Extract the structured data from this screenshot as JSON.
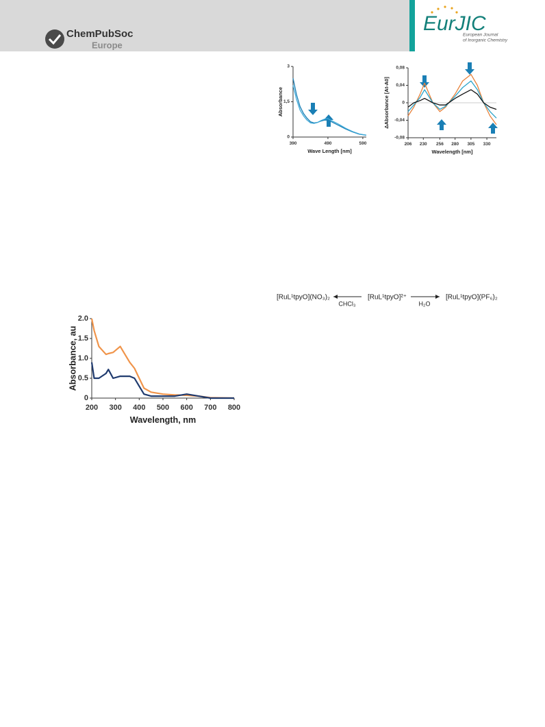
{
  "header": {
    "publisher": "ChemPubSoc",
    "publisher_sub": "Europe",
    "journal": "EurJIC",
    "journal_sub": [
      "European Journal",
      "of Inorganic Chemistry"
    ]
  },
  "figures": [
    {
      "ylabel": "Absorbance",
      "xlabel": "Wave Length [nm]",
      "xlim": [
        390,
        600
      ],
      "ylim": [
        0,
        3
      ],
      "xticks": [
        390,
        490,
        590
      ],
      "yticks": [
        0,
        {
          "value": 1.5,
          "label": "1,5"
        },
        3
      ],
      "x": [
        390,
        400,
        410,
        420,
        430,
        440,
        450,
        460,
        470,
        480,
        490,
        500,
        520,
        540,
        560,
        580,
        600
      ],
      "series": [
        {
          "color": "#1a7fb5",
          "values": [
            2.5,
            1.8,
            1.3,
            1.0,
            0.8,
            0.65,
            0.6,
            0.62,
            0.68,
            0.72,
            0.72,
            0.65,
            0.5,
            0.35,
            0.22,
            0.12,
            0.08
          ]
        },
        {
          "color": "#3fa9d8",
          "values": [
            2.2,
            1.6,
            1.15,
            0.9,
            0.72,
            0.6,
            0.58,
            0.62,
            0.7,
            0.76,
            0.78,
            0.7,
            0.55,
            0.38,
            0.24,
            0.13,
            0.08
          ]
        }
      ]
    },
    {
      "ylabel": "ΔAbsorbance [At-A0]",
      "xlabel": "Wavelength [nm]",
      "xlim": [
        206,
        345
      ],
      "ylim": [
        -0.08,
        0.08
      ],
      "xticks": [
        206,
        230,
        256,
        280,
        305,
        330
      ],
      "yticks": [
        {
          "value": -0.08,
          "label": "-0,08"
        },
        {
          "value": -0.04,
          "label": "-0,04"
        },
        0,
        {
          "value": 0.04,
          "label": "0,04"
        },
        {
          "value": 0.08,
          "label": "0,08"
        }
      ],
      "x": [
        206,
        215,
        225,
        232,
        245,
        256,
        265,
        280,
        292,
        305,
        315,
        325,
        335,
        345
      ],
      "series": [
        {
          "color": "#e8813a",
          "values": [
            -0.03,
            -0.01,
            0.02,
            0.045,
            0.0,
            -0.02,
            -0.01,
            0.02,
            0.05,
            0.065,
            0.04,
            0.0,
            -0.03,
            -0.05
          ]
        },
        {
          "color": "#2aa3c9",
          "values": [
            -0.02,
            -0.005,
            0.012,
            0.03,
            0.0,
            -0.015,
            -0.008,
            0.015,
            0.035,
            0.05,
            0.03,
            0.0,
            -0.02,
            -0.035
          ]
        },
        {
          "color": "#111111",
          "values": [
            -0.01,
            0.0,
            0.005,
            0.01,
            0.0,
            -0.005,
            -0.005,
            0.01,
            0.02,
            0.03,
            0.02,
            0.0,
            -0.01,
            -0.015
          ]
        }
      ]
    },
    {
      "ylabel": "Absorbance, au",
      "xlabel": "Wavelength, nm",
      "xlim": [
        200,
        800
      ],
      "ylim": [
        0,
        2.0
      ],
      "xticks": [
        200,
        300,
        400,
        500,
        600,
        700,
        800
      ],
      "yticks": [
        0,
        0.5,
        {
          "value": 1.0,
          "label": "1.0"
        },
        1.5,
        {
          "value": 2.0,
          "label": "2.0"
        }
      ],
      "x": [
        200,
        210,
        230,
        260,
        270,
        290,
        320,
        340,
        360,
        380,
        400,
        420,
        450,
        500,
        550,
        600,
        650,
        700,
        800
      ],
      "series": [
        {
          "color": "#f0944a",
          "values": [
            2.0,
            1.7,
            1.3,
            1.1,
            1.12,
            1.15,
            1.3,
            1.1,
            0.9,
            0.75,
            0.5,
            0.25,
            0.15,
            0.1,
            0.08,
            0.07,
            0.05,
            0.01,
            0.0
          ]
        },
        {
          "color": "#1f3a6e",
          "values": [
            0.9,
            0.5,
            0.5,
            0.62,
            0.72,
            0.5,
            0.55,
            0.55,
            0.55,
            0.5,
            0.3,
            0.1,
            0.05,
            0.05,
            0.05,
            0.1,
            0.05,
            0.0,
            0.0
          ]
        }
      ]
    }
  ],
  "scheme": {
    "left": "[RuL¹tpyO](NO₃)₂",
    "left_reagent": "CHCl₃",
    "center": "[RuL¹tpyO]²⁺",
    "right_reagent": "H₂O",
    "right": "[RuL¹tpyO](PF₆)₂"
  }
}
